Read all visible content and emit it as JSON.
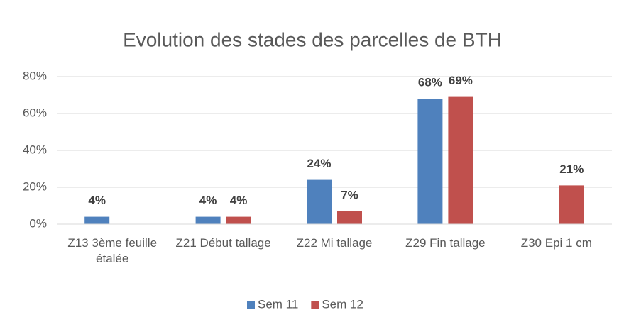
{
  "chart_data": {
    "type": "bar",
    "title": "Evolution des stades des parcelles de BTH",
    "categories": [
      "Z13 3ème feuille étalée",
      "Z21 Début tallage",
      "Z22 Mi tallage",
      "Z29 Fin tallage",
      "Z30 Epi 1 cm"
    ],
    "series": [
      {
        "name": "Sem 11",
        "color": "#4f81bd",
        "values": [
          4,
          4,
          24,
          68,
          null
        ],
        "value_labels": [
          "4%",
          "4%",
          "24%",
          "68%",
          null
        ]
      },
      {
        "name": "Sem 12",
        "color": "#c0504d",
        "values": [
          null,
          4,
          7,
          69,
          21
        ],
        "value_labels": [
          null,
          "4%",
          "7%",
          "69%",
          "21%"
        ]
      }
    ],
    "ylim": [
      0,
      80
    ],
    "yticks": [
      {
        "value": 0,
        "label": "0%"
      },
      {
        "value": 20,
        "label": "20%"
      },
      {
        "value": 40,
        "label": "40%"
      },
      {
        "value": 60,
        "label": "60%"
      },
      {
        "value": 80,
        "label": "80%"
      }
    ],
    "grid": true,
    "legend": "bottom"
  }
}
